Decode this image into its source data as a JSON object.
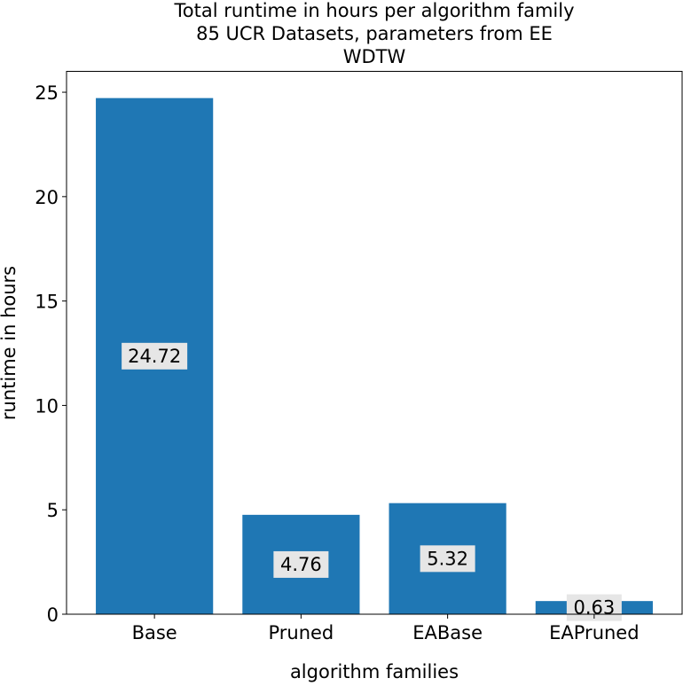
{
  "chart_data": {
    "type": "bar",
    "title_lines": [
      "Total runtime in hours per algorithm family",
      "85 UCR Datasets, parameters from EE",
      "WDTW"
    ],
    "xlabel": "algorithm families",
    "ylabel": "runtime in hours",
    "categories": [
      "Base",
      "Pruned",
      "EABase",
      "EAPruned"
    ],
    "values": [
      24.72,
      4.76,
      5.32,
      0.63
    ],
    "value_labels": [
      "24.72",
      "4.76",
      "5.32",
      "0.63"
    ],
    "ylim": [
      0,
      26
    ],
    "yticks": [
      0,
      5,
      10,
      15,
      20,
      25
    ],
    "grid": false,
    "colors": {
      "bar": "#1f77b4",
      "label_box": "#e6e6e6"
    }
  }
}
